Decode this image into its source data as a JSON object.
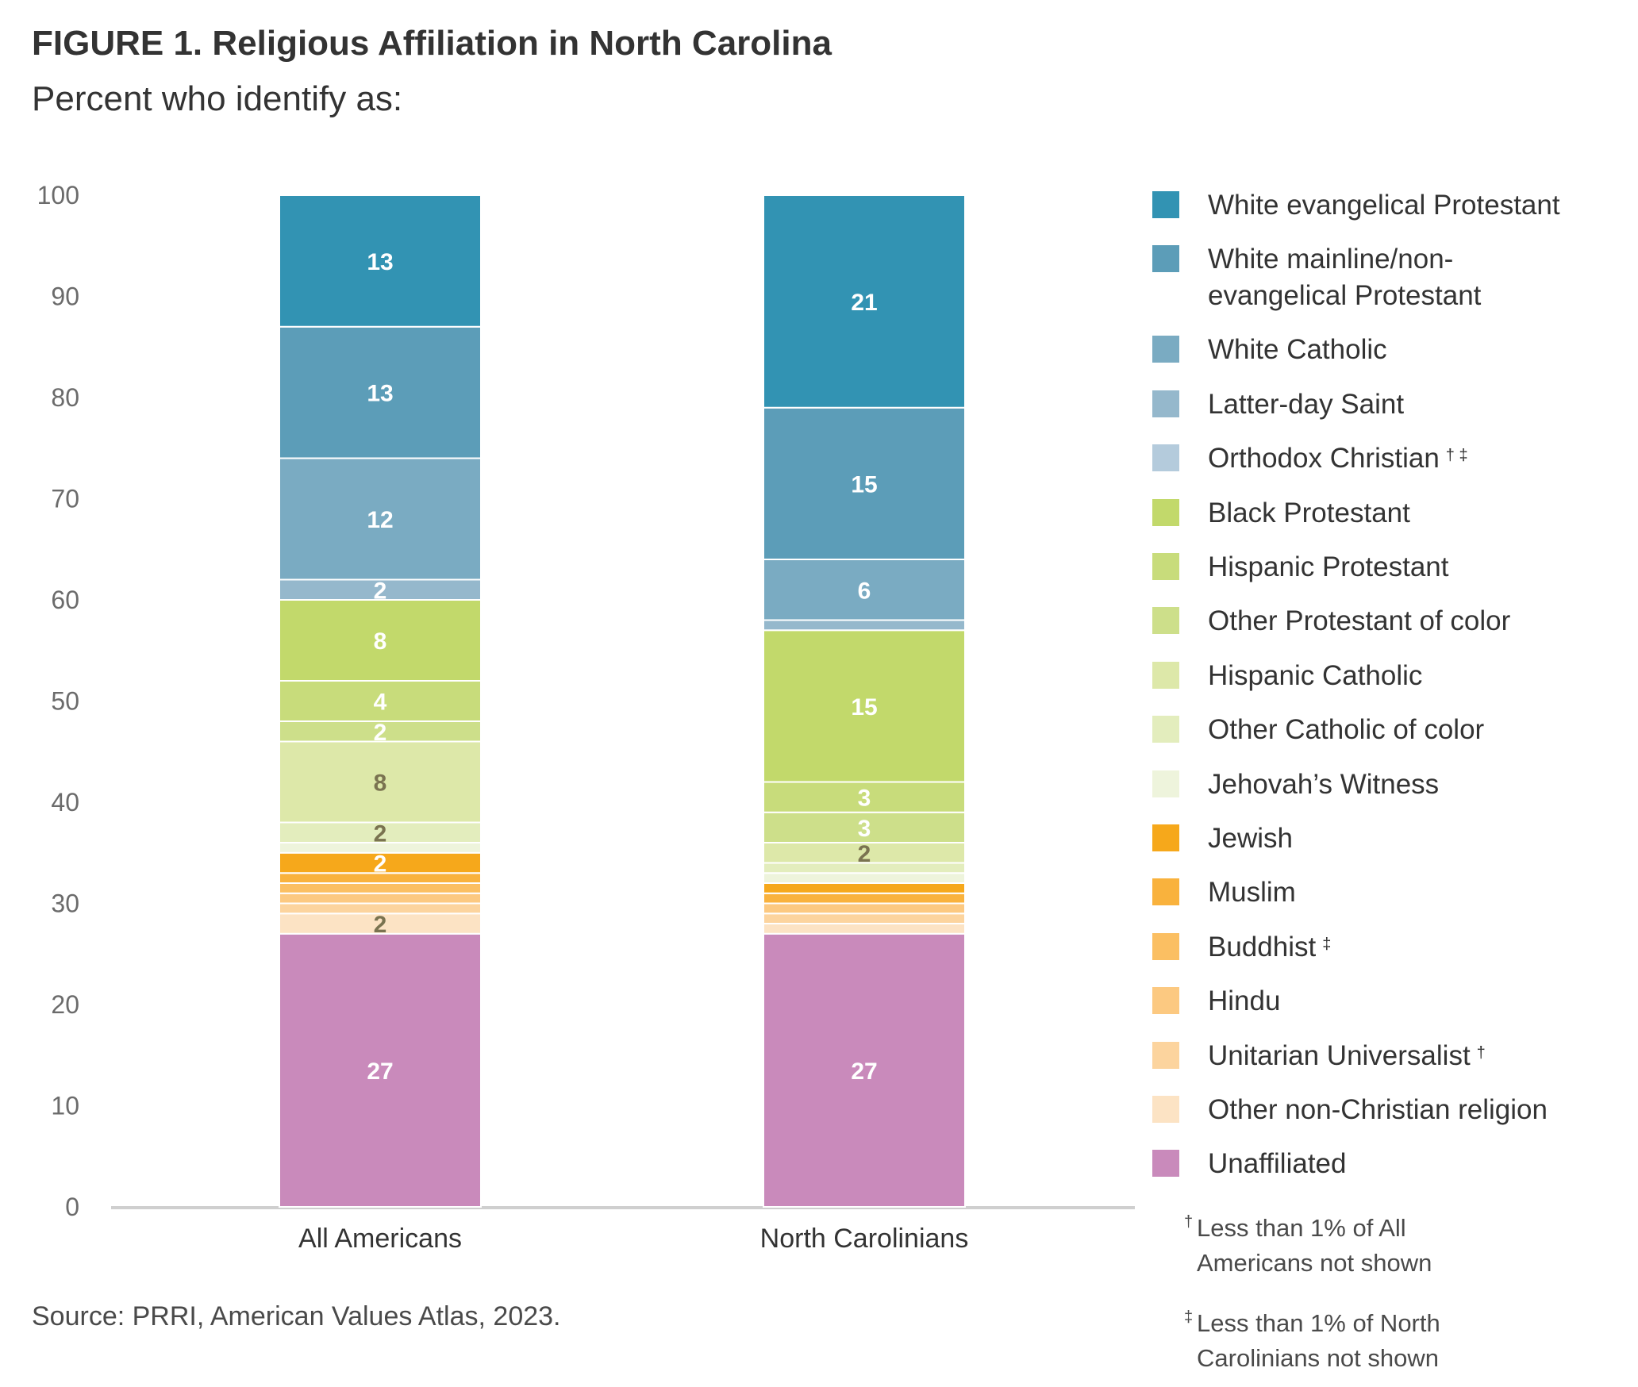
{
  "title": "FIGURE 1. Religious Affiliation in North Carolina",
  "subtitle": "Percent who identify as:",
  "source": "Source: PRRI, American Values Atlas, 2023.",
  "notes": [
    {
      "mark": "†",
      "text": "Less than 1% of All\nAmericans not shown"
    },
    {
      "mark": "‡",
      "text": "Less than 1% of North\nCarolinians not shown"
    }
  ],
  "chart_data": {
    "type": "bar",
    "stacked": true,
    "categories": [
      "All Americans",
      "North Carolinians"
    ],
    "ylim": [
      0,
      100
    ],
    "yticks": [
      0,
      10,
      20,
      30,
      40,
      50,
      60,
      70,
      80,
      90,
      100
    ],
    "grid": false,
    "legend_position": "right",
    "series": [
      {
        "name": "Unaffiliated",
        "color": "#c98abb",
        "values": [
          27,
          27
        ],
        "labels": [
          "27",
          "27"
        ],
        "label_color": "#ffffff"
      },
      {
        "name": "Other non-Christian religion",
        "color": "#fce3c4",
        "values": [
          2,
          1
        ],
        "labels": [
          "2",
          ""
        ],
        "label_color": "#7a7350"
      },
      {
        "name": "Unitarian Universalist",
        "footnote": "†",
        "color": "#fcd49e",
        "values": [
          1,
          1
        ],
        "labels": [
          "",
          ""
        ],
        "label_color": "#7a7350"
      },
      {
        "name": "Hindu",
        "footnote": "",
        "color": "#fcc981",
        "values": [
          1,
          1
        ],
        "labels": [
          "",
          ""
        ],
        "label_color": "#7a7350"
      },
      {
        "name": "Buddhist",
        "footnote": "‡",
        "color": "#fbbf62",
        "values": [
          1,
          0
        ],
        "labels": [
          "",
          ""
        ],
        "label_color": "#7a7350"
      },
      {
        "name": "Muslim",
        "color": "#f9b23d",
        "values": [
          1,
          1
        ],
        "labels": [
          "",
          ""
        ],
        "label_color": "#7a7350"
      },
      {
        "name": "Jewish",
        "color": "#f6a81b",
        "values": [
          2,
          1
        ],
        "labels": [
          "2",
          ""
        ],
        "label_color": "#ffffff"
      },
      {
        "name": "Jehovah’s Witness",
        "color": "#eef4dc",
        "values": [
          1,
          1
        ],
        "labels": [
          "",
          ""
        ],
        "label_color": "#7a7350"
      },
      {
        "name": "Other Catholic of color",
        "color": "#e3edbd",
        "values": [
          2,
          1
        ],
        "labels": [
          "2",
          ""
        ],
        "label_color": "#7a7350"
      },
      {
        "name": "Hispanic Catholic",
        "color": "#dde8a9",
        "values": [
          8,
          2
        ],
        "labels": [
          "8",
          "2"
        ],
        "label_color": "#7a7350"
      },
      {
        "name": "Other Protestant of color",
        "color": "#cddf8a",
        "values": [
          2,
          3
        ],
        "labels": [
          "2",
          "3"
        ],
        "label_color": "#ffffff"
      },
      {
        "name": "Hispanic Protestant",
        "color": "#c8dc7b",
        "values": [
          4,
          3
        ],
        "labels": [
          "4",
          "3"
        ],
        "label_color": "#ffffff"
      },
      {
        "name": "Black Protestant",
        "color": "#c2d96b",
        "values": [
          8,
          15
        ],
        "labels": [
          "8",
          "15"
        ],
        "label_color": "#ffffff"
      },
      {
        "name": "Orthodox Christian",
        "footnote": "† ‡",
        "color": "#b4cbdc",
        "values": [
          0,
          0
        ],
        "labels": [
          "",
          ""
        ],
        "label_color": "#ffffff"
      },
      {
        "name": "Latter-day Saint",
        "color": "#95b8cc",
        "values": [
          2,
          1
        ],
        "labels": [
          "2",
          ""
        ],
        "label_color": "#ffffff"
      },
      {
        "name": "White Catholic",
        "color": "#7aabc2",
        "values": [
          12,
          6
        ],
        "labels": [
          "12",
          "6"
        ],
        "label_color": "#ffffff"
      },
      {
        "name": "White mainline/non-evangelical Protestant",
        "display_name": "White mainline/non-\nevangelical Protestant",
        "color": "#5c9db8",
        "values": [
          13,
          15
        ],
        "labels": [
          "13",
          "15"
        ],
        "label_color": "#ffffff"
      },
      {
        "name": "White evangelical Protestant",
        "color": "#3293b3",
        "values": [
          13,
          21
        ],
        "labels": [
          "13",
          "21"
        ],
        "label_color": "#ffffff"
      }
    ]
  }
}
